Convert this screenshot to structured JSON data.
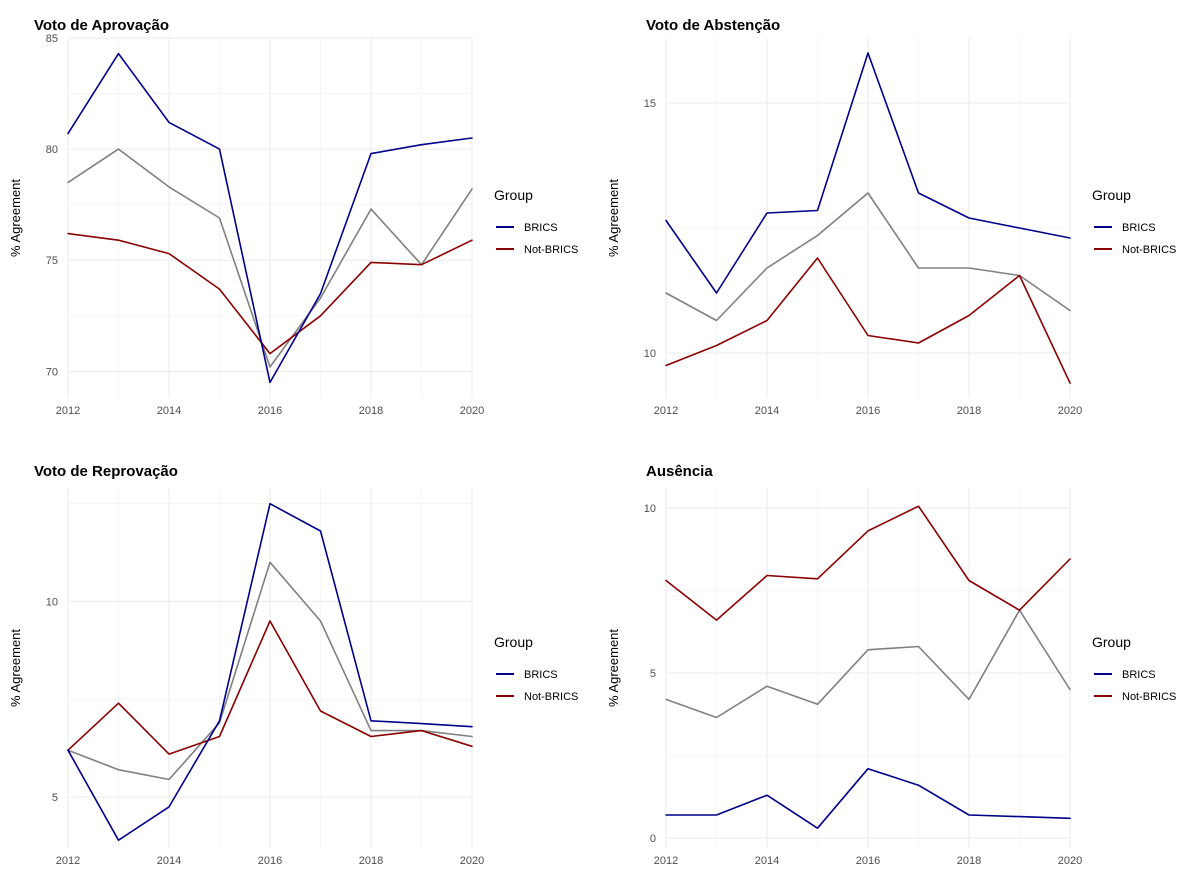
{
  "chart_data": [
    {
      "type": "line",
      "title": "Voto de Aprovação",
      "xlabel": "",
      "ylabel": "% Agreement",
      "x": [
        2012,
        2013,
        2014,
        2015,
        2016,
        2017,
        2018,
        2019,
        2020
      ],
      "xticks": [
        2012,
        2014,
        2016,
        2018,
        2020
      ],
      "yticks": [
        70,
        75,
        80,
        85
      ],
      "ylim": [
        68.8,
        85
      ],
      "series": [
        {
          "name": "BRICS",
          "color": "#00008b",
          "values": [
            80.7,
            84.3,
            81.2,
            80.0,
            69.5,
            73.5,
            79.8,
            80.2,
            80.5
          ],
          "in_legend": true
        },
        {
          "name": "Not-BRICS",
          "color": "#8b0000",
          "values": [
            76.2,
            75.9,
            75.3,
            73.7,
            70.8,
            72.5,
            74.9,
            74.8,
            75.9
          ],
          "in_legend": true
        },
        {
          "name": "",
          "color": "#808080",
          "values": [
            78.5,
            80.0,
            78.3,
            76.9,
            70.2,
            73.3,
            77.3,
            74.8,
            78.2
          ],
          "in_legend": false
        }
      ],
      "legend": {
        "title": "Group",
        "position": "right"
      },
      "grid": true
    },
    {
      "type": "line",
      "title": "Voto de Abstenção",
      "xlabel": "",
      "ylabel": "% Agreement",
      "x": [
        2012,
        2013,
        2014,
        2015,
        2016,
        2017,
        2018,
        2019,
        2020
      ],
      "xticks": [
        2012,
        2014,
        2016,
        2018,
        2020
      ],
      "yticks": [
        10,
        15
      ],
      "ylim": [
        9.1,
        16.3
      ],
      "series": [
        {
          "name": "BRICS",
          "color": "#00008b",
          "values": [
            12.65,
            11.2,
            12.8,
            12.85,
            16.0,
            13.2,
            12.7,
            12.5,
            12.3
          ],
          "in_legend": true
        },
        {
          "name": "Not-BRICS",
          "color": "#8b0000",
          "values": [
            9.75,
            10.15,
            10.65,
            11.9,
            10.35,
            10.2,
            10.75,
            11.55,
            9.4
          ],
          "in_legend": true
        },
        {
          "name": "",
          "color": "#808080",
          "values": [
            11.2,
            10.65,
            11.7,
            12.35,
            13.2,
            11.7,
            11.7,
            11.55,
            10.85
          ],
          "in_legend": false
        }
      ],
      "legend": {
        "title": "Group",
        "position": "right"
      },
      "grid": true
    },
    {
      "type": "line",
      "title": "Voto de Reprovação",
      "xlabel": "",
      "ylabel": "% Agreement",
      "x": [
        2012,
        2013,
        2014,
        2015,
        2016,
        2017,
        2018,
        2019,
        2020
      ],
      "xticks": [
        2012,
        2014,
        2016,
        2018,
        2020
      ],
      "yticks": [
        5,
        10
      ],
      "ylim": [
        3.7,
        12.9
      ],
      "series": [
        {
          "name": "BRICS",
          "color": "#00008b",
          "values": [
            6.2,
            3.9,
            4.75,
            6.95,
            12.5,
            11.8,
            6.95,
            6.88,
            6.8
          ],
          "in_legend": true
        },
        {
          "name": "Not-BRICS",
          "color": "#8b0000",
          "values": [
            6.2,
            7.4,
            6.1,
            6.55,
            9.5,
            7.2,
            6.55,
            6.7,
            6.3
          ],
          "in_legend": true
        },
        {
          "name": "",
          "color": "#808080",
          "values": [
            6.2,
            5.7,
            5.45,
            6.9,
            11.0,
            9.5,
            6.7,
            6.7,
            6.55
          ],
          "in_legend": false
        }
      ],
      "legend": {
        "title": "Group",
        "position": "right"
      },
      "grid": true
    },
    {
      "type": "line",
      "title": "Ausência",
      "xlabel": "",
      "ylabel": "% Agreement",
      "x": [
        2012,
        2013,
        2014,
        2015,
        2016,
        2017,
        2018,
        2019,
        2020
      ],
      "xticks": [
        2012,
        2014,
        2016,
        2018,
        2020
      ],
      "yticks": [
        0,
        5,
        10
      ],
      "ylim": [
        -0.3,
        10.6
      ],
      "series": [
        {
          "name": "BRICS",
          "color": "#00008b",
          "values": [
            0.7,
            0.7,
            1.3,
            0.3,
            2.1,
            1.6,
            0.7,
            0.65,
            0.6
          ],
          "in_legend": true
        },
        {
          "name": "Not-BRICS",
          "color": "#8b0000",
          "values": [
            7.8,
            6.6,
            7.95,
            7.85,
            9.3,
            10.05,
            7.8,
            6.9,
            8.45
          ],
          "in_legend": true
        },
        {
          "name": "",
          "color": "#808080",
          "values": [
            4.2,
            3.65,
            4.6,
            4.05,
            5.7,
            5.8,
            4.2,
            6.9,
            4.5
          ],
          "in_legend": false
        }
      ],
      "legend": {
        "title": "Group",
        "position": "right"
      },
      "grid": true
    }
  ]
}
